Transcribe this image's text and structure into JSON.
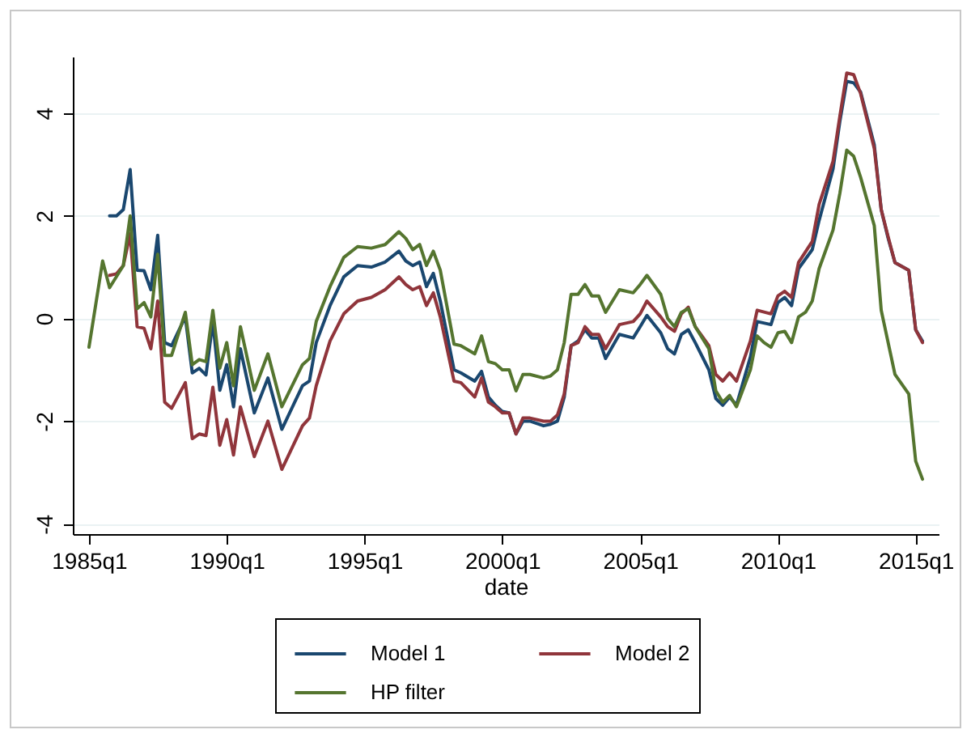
{
  "chart_data": {
    "type": "line",
    "xlabel": "date",
    "xlim": [
      "1984-06",
      "2015-11"
    ],
    "xticks": [
      {
        "value": "1985-01",
        "label": "1985q1"
      },
      {
        "value": "1990-01",
        "label": "1990q1"
      },
      {
        "value": "1995-01",
        "label": "1995q1"
      },
      {
        "value": "2000-01",
        "label": "2000q1"
      },
      {
        "value": "2005-01",
        "label": "2005q1"
      },
      {
        "value": "2010-01",
        "label": "2010q1"
      },
      {
        "value": "2015-01",
        "label": "2015q1"
      }
    ],
    "ylim": [
      -4.2,
      5.1
    ],
    "yticks": [
      -4,
      -2,
      0,
      2,
      4
    ],
    "grid": "y",
    "legend": "bottom",
    "marker": "none",
    "line_style": "solid",
    "series": [
      {
        "name": "Model 1",
        "color": "#1a476f",
        "x": [
          "1985-10",
          "1986-01",
          "1986-04",
          "1986-07",
          "1986-10",
          "1987-01",
          "1987-04",
          "1987-07",
          "1987-10",
          "1988-01",
          "1988-07",
          "1988-10",
          "1989-01",
          "1989-04",
          "1989-07",
          "1989-10",
          "1990-01",
          "1990-04",
          "1990-07",
          "1991-01",
          "1991-07",
          "1992-01",
          "1992-10",
          "1993-01",
          "1993-04",
          "1993-10",
          "1994-04",
          "1994-10",
          "1995-04",
          "1995-10",
          "1996-04",
          "1996-07",
          "1996-10",
          "1997-01",
          "1997-04",
          "1997-07",
          "1997-10",
          "1998-04",
          "1998-07",
          "1999-01",
          "1999-04",
          "1999-07",
          "1999-10",
          "2000-01",
          "2000-04",
          "2000-07",
          "2000-10",
          "2001-01",
          "2001-07",
          "2001-10",
          "2002-01",
          "2002-04",
          "2002-07",
          "2002-10",
          "2003-01",
          "2003-04",
          "2003-07",
          "2003-10",
          "2004-04",
          "2004-10",
          "2005-01",
          "2005-04",
          "2005-10",
          "2006-01",
          "2006-04",
          "2006-07",
          "2006-10",
          "2007-01",
          "2007-07",
          "2007-10",
          "2008-01",
          "2008-04",
          "2008-07",
          "2009-01",
          "2009-04",
          "2009-10",
          "2010-01",
          "2010-04",
          "2010-07",
          "2010-10",
          "2011-04",
          "2011-07",
          "2012-01",
          "2012-04",
          "2012-07",
          "2012-10",
          "2013-01",
          "2013-07",
          "2013-10",
          "2014-01",
          "2014-04",
          "2014-10",
          "2015-01",
          "2015-04"
        ],
        "values": [
          2.0,
          2.0,
          2.12,
          2.9,
          0.94,
          0.93,
          0.56,
          1.62,
          -0.47,
          -0.53,
          0.03,
          -1.06,
          -0.97,
          -1.1,
          -0.06,
          -1.4,
          -0.9,
          -1.72,
          -0.59,
          -1.84,
          -1.16,
          -2.16,
          -1.31,
          -1.22,
          -0.47,
          0.25,
          0.81,
          1.03,
          1.0,
          1.1,
          1.31,
          1.12,
          1.03,
          1.1,
          0.62,
          0.88,
          0.34,
          -1.0,
          -1.06,
          -1.22,
          -1.03,
          -1.53,
          -1.69,
          -1.81,
          -1.84,
          -2.25,
          -2.0,
          -2.0,
          -2.09,
          -2.06,
          -2.0,
          -1.53,
          -0.53,
          -0.44,
          -0.22,
          -0.38,
          -0.38,
          -0.78,
          -0.31,
          -0.38,
          -0.16,
          0.06,
          -0.28,
          -0.59,
          -0.69,
          -0.31,
          -0.22,
          -0.47,
          -1.0,
          -1.56,
          -1.69,
          -1.53,
          -1.69,
          -0.75,
          -0.06,
          -0.12,
          0.31,
          0.41,
          0.25,
          0.97,
          1.34,
          1.91,
          2.91,
          3.84,
          4.62,
          4.59,
          4.41,
          3.38,
          2.12,
          1.56,
          1.09,
          0.94,
          -0.22,
          -0.44
        ]
      },
      {
        "name": "Model 2",
        "color": "#90353b",
        "x": [
          "1985-10",
          "1986-01",
          "1986-04",
          "1986-07",
          "1986-10",
          "1987-01",
          "1987-04",
          "1987-07",
          "1987-10",
          "1988-01",
          "1988-07",
          "1988-10",
          "1989-01",
          "1989-04",
          "1989-07",
          "1989-10",
          "1990-01",
          "1990-04",
          "1990-07",
          "1991-01",
          "1991-07",
          "1992-01",
          "1992-10",
          "1993-01",
          "1993-04",
          "1993-10",
          "1994-04",
          "1994-10",
          "1995-04",
          "1995-10",
          "1996-04",
          "1996-07",
          "1996-10",
          "1997-01",
          "1997-04",
          "1997-07",
          "1997-10",
          "1998-04",
          "1998-07",
          "1999-01",
          "1999-04",
          "1999-07",
          "1999-10",
          "2000-01",
          "2000-04",
          "2000-07",
          "2000-10",
          "2001-01",
          "2001-07",
          "2001-10",
          "2002-01",
          "2002-04",
          "2002-07",
          "2002-10",
          "2003-01",
          "2003-04",
          "2003-07",
          "2003-10",
          "2004-04",
          "2004-10",
          "2005-01",
          "2005-04",
          "2005-10",
          "2006-01",
          "2006-04",
          "2006-07",
          "2006-10",
          "2007-01",
          "2007-07",
          "2007-10",
          "2008-01",
          "2008-04",
          "2008-07",
          "2009-01",
          "2009-04",
          "2009-10",
          "2010-01",
          "2010-04",
          "2010-07",
          "2010-10",
          "2011-04",
          "2011-07",
          "2012-01",
          "2012-04",
          "2012-07",
          "2012-10",
          "2013-01",
          "2013-07",
          "2013-10",
          "2014-01",
          "2014-04",
          "2014-10",
          "2015-01",
          "2015-04"
        ],
        "values": [
          0.84,
          0.87,
          1.03,
          1.65,
          -0.16,
          -0.19,
          -0.59,
          0.34,
          -1.63,
          -1.75,
          -1.25,
          -2.34,
          -2.25,
          -2.28,
          -1.34,
          -2.47,
          -1.97,
          -2.66,
          -1.72,
          -2.69,
          -2.0,
          -2.94,
          -2.09,
          -1.94,
          -1.31,
          -0.44,
          0.09,
          0.34,
          0.41,
          0.56,
          0.81,
          0.66,
          0.56,
          0.62,
          0.25,
          0.5,
          0.03,
          -1.22,
          -1.25,
          -1.53,
          -1.16,
          -1.63,
          -1.72,
          -1.84,
          -1.84,
          -2.25,
          -1.94,
          -1.94,
          -2.0,
          -2.0,
          -1.88,
          -1.47,
          -0.53,
          -0.47,
          -0.16,
          -0.31,
          -0.31,
          -0.59,
          -0.12,
          -0.06,
          0.09,
          0.34,
          0.03,
          -0.16,
          -0.25,
          0.09,
          0.22,
          -0.16,
          -0.53,
          -1.09,
          -1.22,
          -1.06,
          -1.22,
          -0.44,
          0.16,
          0.09,
          0.44,
          0.53,
          0.41,
          1.09,
          1.5,
          2.22,
          3.06,
          3.94,
          4.78,
          4.75,
          4.38,
          3.31,
          2.12,
          1.59,
          1.09,
          0.94,
          -0.22,
          -0.47
        ]
      },
      {
        "name": "HP filter",
        "color": "#55752f",
        "x": [
          "1985-01",
          "1985-07",
          "1985-10",
          "1986-04",
          "1986-07",
          "1986-10",
          "1987-01",
          "1987-04",
          "1987-07",
          "1987-10",
          "1988-01",
          "1988-07",
          "1988-10",
          "1989-01",
          "1989-04",
          "1989-07",
          "1989-10",
          "1990-01",
          "1990-04",
          "1990-07",
          "1991-01",
          "1991-07",
          "1992-01",
          "1992-10",
          "1993-01",
          "1993-04",
          "1993-10",
          "1994-04",
          "1994-10",
          "1995-04",
          "1995-10",
          "1996-04",
          "1996-07",
          "1996-10",
          "1997-01",
          "1997-04",
          "1997-07",
          "1997-10",
          "1998-04",
          "1998-07",
          "1999-01",
          "1999-04",
          "1999-07",
          "1999-10",
          "2000-01",
          "2000-04",
          "2000-07",
          "2000-10",
          "2001-01",
          "2001-07",
          "2001-10",
          "2002-01",
          "2002-04",
          "2002-07",
          "2002-10",
          "2003-01",
          "2003-04",
          "2003-07",
          "2003-10",
          "2004-04",
          "2004-10",
          "2005-01",
          "2005-04",
          "2005-10",
          "2006-01",
          "2006-04",
          "2006-07",
          "2006-10",
          "2007-01",
          "2007-07",
          "2007-10",
          "2008-01",
          "2008-04",
          "2008-07",
          "2009-01",
          "2009-04",
          "2009-07",
          "2009-10",
          "2010-01",
          "2010-04",
          "2010-07",
          "2010-10",
          "2011-01",
          "2011-04",
          "2011-07",
          "2012-01",
          "2012-04",
          "2012-07",
          "2012-10",
          "2013-01",
          "2013-07",
          "2013-10",
          "2014-04",
          "2014-10",
          "2015-01",
          "2015-04"
        ],
        "values": [
          -0.56,
          1.12,
          0.6,
          1.03,
          2.0,
          0.19,
          0.31,
          0.03,
          1.25,
          -0.72,
          -0.72,
          0.12,
          -0.9,
          -0.8,
          -0.84,
          0.16,
          -0.97,
          -0.47,
          -1.31,
          -0.16,
          -1.4,
          -0.69,
          -1.72,
          -0.9,
          -0.78,
          -0.06,
          0.62,
          1.19,
          1.4,
          1.37,
          1.44,
          1.69,
          1.56,
          1.34,
          1.44,
          1.03,
          1.31,
          0.94,
          -0.5,
          -0.53,
          -0.69,
          -0.34,
          -0.84,
          -0.88,
          -1.0,
          -1.0,
          -1.41,
          -1.09,
          -1.09,
          -1.16,
          -1.12,
          -1.0,
          -0.47,
          0.47,
          0.47,
          0.66,
          0.44,
          0.44,
          0.12,
          0.56,
          0.5,
          0.66,
          0.84,
          0.47,
          0.0,
          -0.16,
          0.12,
          0.19,
          -0.16,
          -0.59,
          -1.41,
          -1.63,
          -1.5,
          -1.72,
          -1.0,
          -0.34,
          -0.47,
          -0.56,
          -0.28,
          -0.25,
          -0.47,
          0.03,
          0.12,
          0.34,
          0.97,
          1.72,
          2.44,
          3.28,
          3.16,
          2.75,
          1.81,
          0.16,
          -1.09,
          -1.47,
          -2.78,
          -3.13
        ]
      }
    ]
  }
}
